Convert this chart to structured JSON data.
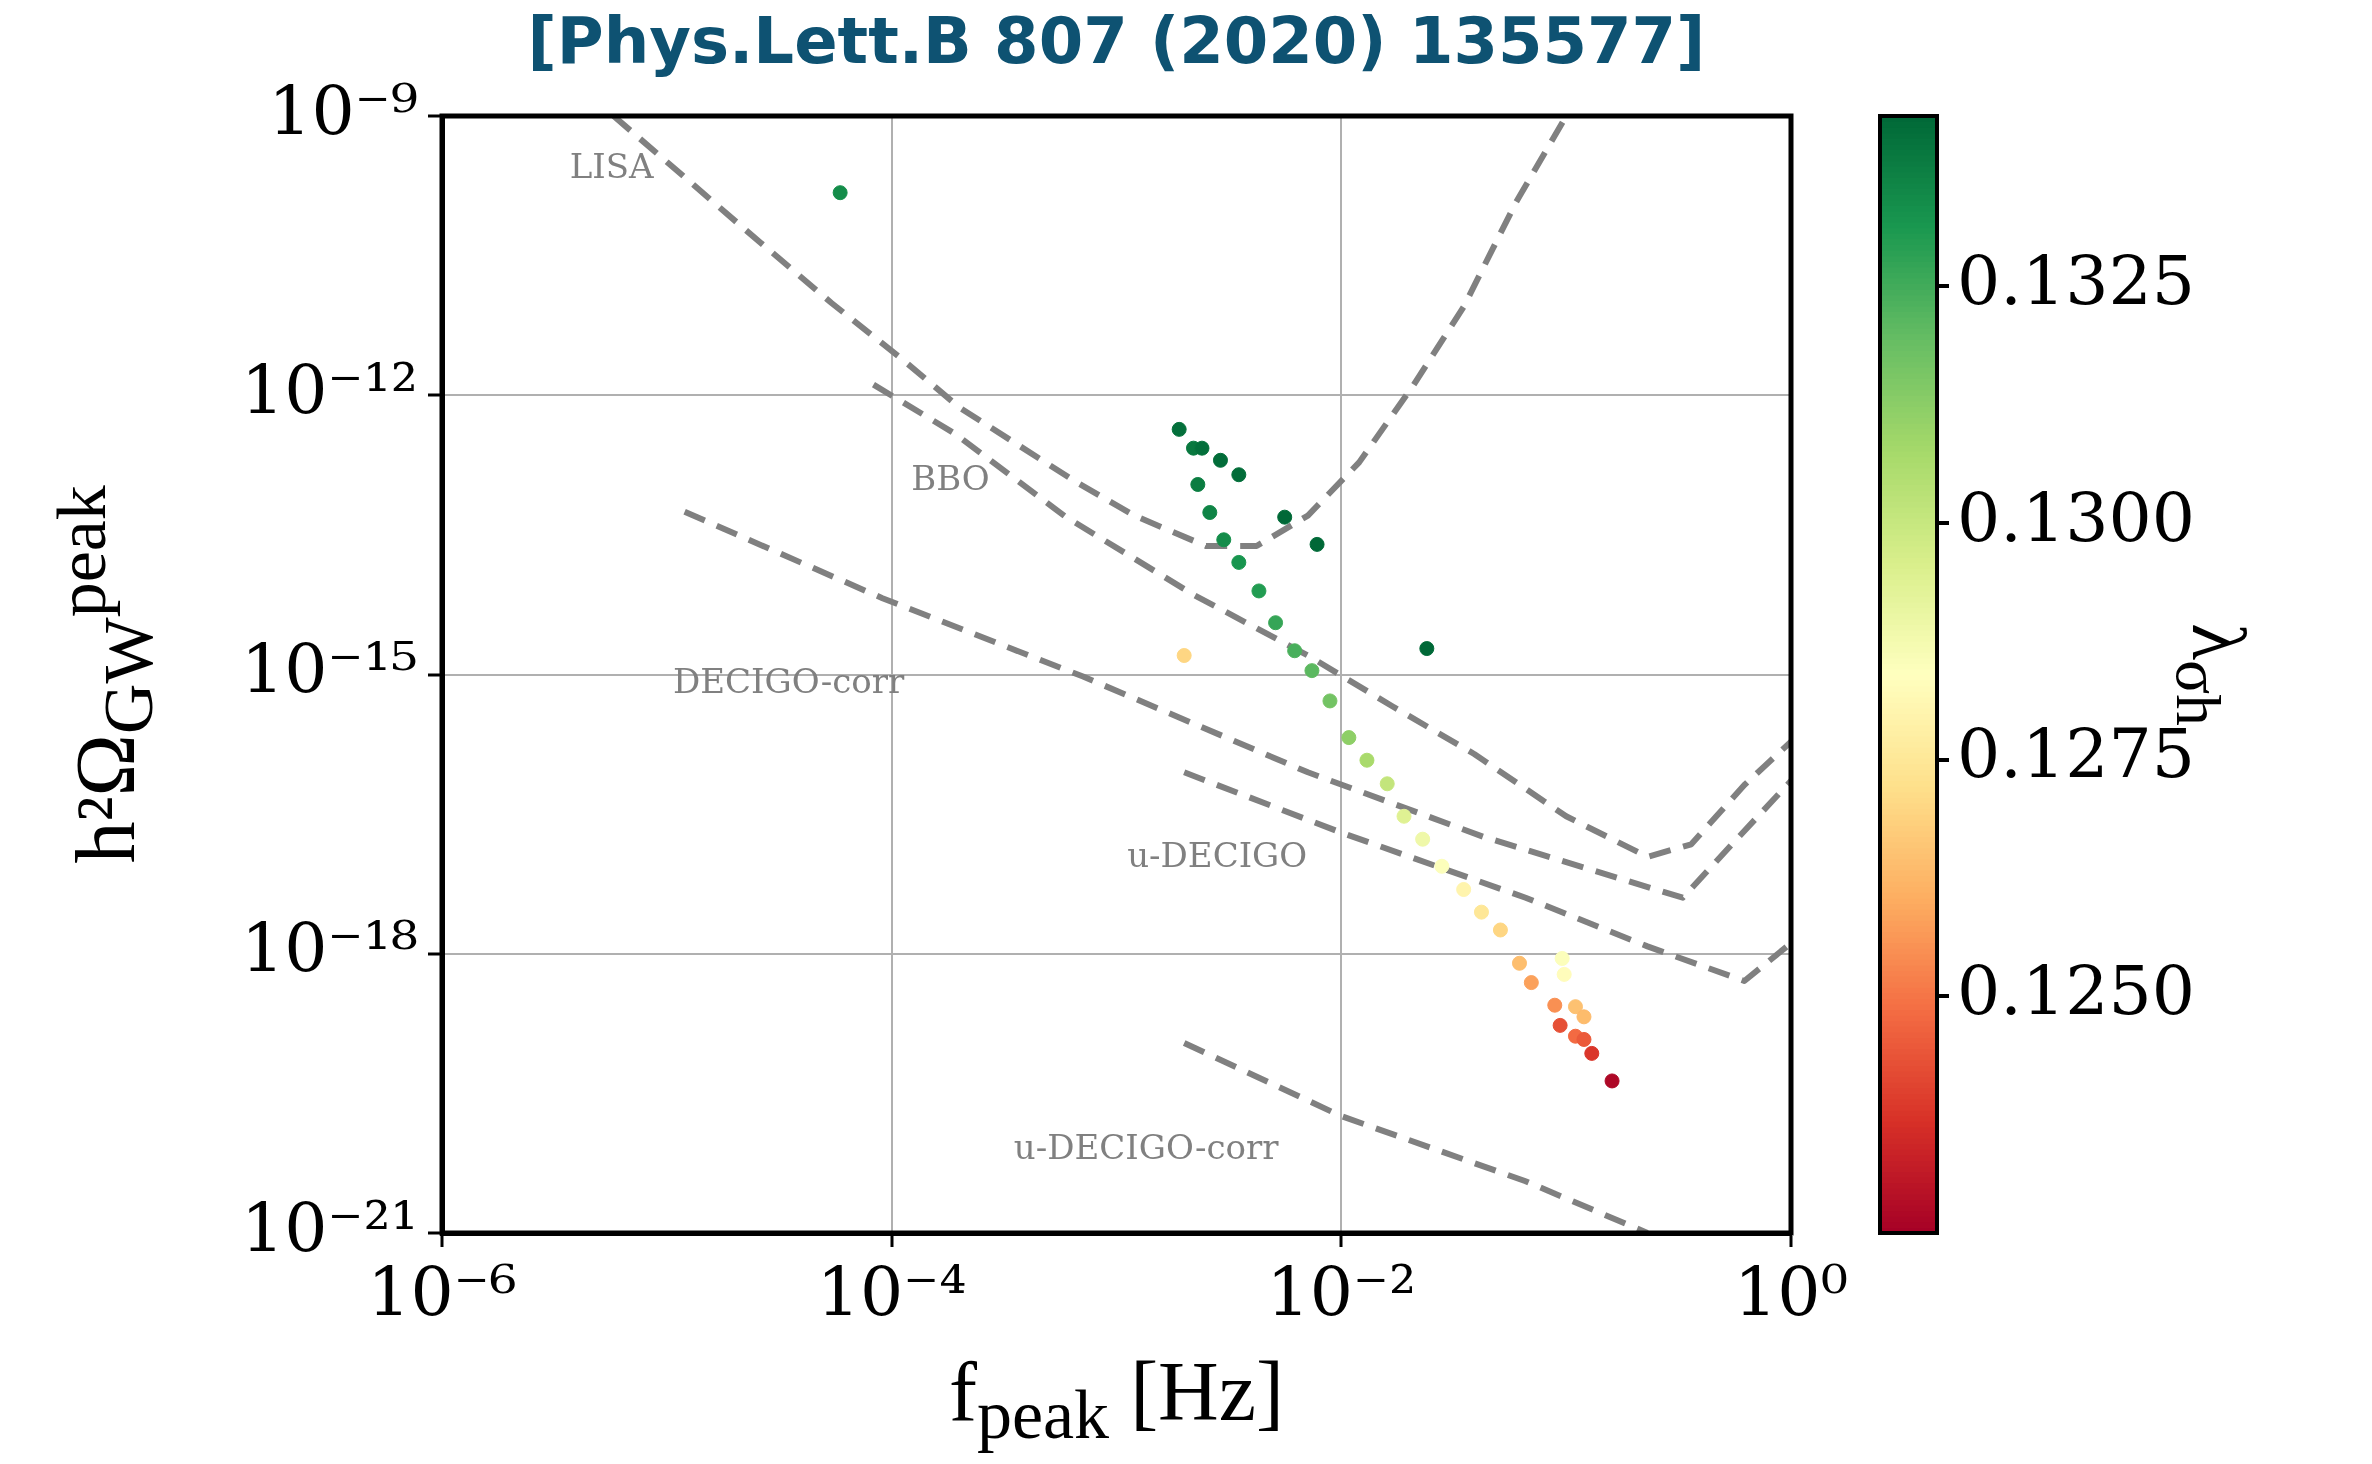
{
  "chart_data": {
    "type": "scatter",
    "title": "[Phys.Lett.B 807 (2020) 135577]",
    "xlabel": "f$_{peak}$ [Hz]",
    "ylabel": "h²Ω$_{GW}$$^{peak}$",
    "clabel": "λ$_{σh}$",
    "log": "xy",
    "grid": true,
    "xlim": [
      1e-06,
      1
    ],
    "ylim": [
      1e-21,
      1e-09
    ],
    "xticks": [
      {
        "value": 1e-06,
        "label": "10⁻⁶"
      },
      {
        "value": 0.0001,
        "label": "10⁻⁴"
      },
      {
        "value": 0.01,
        "label": "10⁻²"
      },
      {
        "value": 1,
        "label": "10⁰"
      }
    ],
    "yticks": [
      {
        "value": 1e-21,
        "label": "10⁻²¹"
      },
      {
        "value": 1e-18,
        "label": "10⁻¹⁸"
      },
      {
        "value": 1e-15,
        "label": "10⁻¹⁵"
      },
      {
        "value": 1e-12,
        "label": "10⁻¹²"
      },
      {
        "value": 1e-09,
        "label": "10⁻⁹"
      }
    ],
    "clim": [
      0.1225,
      0.1343
    ],
    "cticks": [
      {
        "value": 0.125,
        "label": "0.1250"
      },
      {
        "value": 0.1275,
        "label": "0.1275"
      },
      {
        "value": 0.13,
        "label": "0.1300"
      },
      {
        "value": 0.1325,
        "label": "0.1325"
      }
    ],
    "series": [
      {
        "type": "line",
        "name": "LISA",
        "color": "#808080",
        "line_style": "dashed",
        "marker": "none",
        "x": [
          5.8e-06,
          1.2e-05,
          2.2e-05,
          5.4e-05,
          0.00011,
          0.0002,
          0.00065,
          0.0012,
          0.0025,
          0.0042,
          0.0071,
          0.012,
          0.021,
          0.035,
          0.06,
          0.1
        ],
        "values": [
          1e-09,
          2.2e-10,
          6.2e-11,
          9.8e-12,
          2.5e-12,
          7.4e-13,
          1.2e-13,
          5.1e-14,
          2.4e-14,
          2.4e-14,
          5.1e-14,
          1.9e-13,
          1.3e-12,
          8.9e-12,
          1.2e-10,
          1e-09
        ]
      },
      {
        "type": "line",
        "name": "BBO",
        "color": "#808080",
        "line_style": "dashed",
        "marker": "none",
        "x": [
          8.3e-05,
          0.00019,
          0.00059,
          0.0022,
          0.0071,
          0.017,
          0.039,
          0.1,
          0.23,
          0.36,
          0.62,
          1
        ],
        "values": [
          1.3e-12,
          3.9e-13,
          5e-14,
          7.2e-15,
          1.6e-15,
          4.5e-16,
          1.4e-16,
          3e-17,
          1.1e-17,
          1.5e-17,
          6.5e-17,
          1.9e-16
        ]
      },
      {
        "type": "line",
        "name": "DECIGO-corr",
        "color": "#808080",
        "line_style": "dashed",
        "marker": "none",
        "x": [
          1.2e-05,
          9.1e-05,
          0.00071,
          0.0071,
          0.043,
          0.33,
          0.56,
          1
        ],
        "values": [
          5.6e-14,
          6.6e-15,
          9.5e-16,
          8.9e-17,
          1.8e-17,
          4e-18,
          1.6e-17,
          7.2e-17
        ]
      },
      {
        "type": "line",
        "name": "u-DECIGO",
        "color": "#808080",
        "line_style": "dashed",
        "marker": "none",
        "x": [
          0.002,
          0.01,
          0.066,
          0.23,
          0.62,
          1
        ],
        "values": [
          8.9e-17,
          2e-17,
          4e-18,
          1.2e-18,
          5.1e-19,
          1.3e-18
        ]
      },
      {
        "type": "line",
        "name": "u-DECIGO-corr",
        "color": "#808080",
        "line_style": "dashed",
        "marker": "none",
        "x": [
          0.002,
          0.01,
          0.066,
          0.23
        ],
        "values": [
          1.1e-19,
          1.8e-20,
          3.6e-21,
          1e-21
        ]
      },
      {
        "type": "scatter",
        "marker": "circle",
        "x": [
          0.0019,
          0.0022,
          0.0023,
          0.0026,
          0.003,
          0.0035,
          0.0043,
          0.0051,
          0.0062,
          0.0074,
          0.0089,
          0.0108,
          0.013,
          0.016,
          0.019,
          0.023,
          0.028,
          0.035,
          0.042,
          0.051,
          0.062,
          0.07,
          0.0024,
          0.0029,
          0.0035,
          0.0056,
          0.0078,
          0.024,
          0.002,
          0.096,
          0.098,
          0.089,
          0.11,
          0.12,
          0.094,
          0.11,
          0.12,
          0.13,
          0.16,
          5.9e-05
        ],
        "values": [
          4.3e-13,
          2.7e-13,
          1.1e-13,
          5.5e-14,
          2.8e-14,
          1.6e-14,
          7.9e-15,
          3.6e-15,
          1.8e-15,
          1.1e-15,
          5.2e-16,
          2.1e-16,
          1.2e-16,
          6.7e-17,
          3e-17,
          1.7e-17,
          8.7e-18,
          4.9e-18,
          2.8e-18,
          1.8e-18,
          7.9e-19,
          4.9e-19,
          2.7e-13,
          2e-13,
          1.4e-13,
          4.9e-14,
          2.5e-14,
          1.9e-15,
          1.6e-15,
          8.9e-19,
          6e-19,
          2.8e-19,
          2.7e-19,
          2.1e-19,
          1.7e-19,
          1.3e-19,
          1.2e-19,
          8.5e-20,
          4.3e-20,
          1.5e-10
        ],
        "colors": [
          "#046f3b",
          "#09783f",
          "#0b7c41",
          "#0f8446",
          "#148c4a",
          "#18954f",
          "#229c52",
          "#35a557",
          "#48af5c",
          "#5bb860",
          "#73c364",
          "#8ecf67",
          "#a9da6c",
          "#c3e57c",
          "#dff193",
          "#eff8a9",
          "#fcfebb",
          "#fff4ad",
          "#fee797",
          "#fed683",
          "#fdbe6e",
          "#fba15b",
          "#046f3b",
          "#026c39",
          "#026c39",
          "#006837",
          "#006837",
          "#006837",
          "#fed683",
          "#fcfebb",
          "#fffcbb",
          "#f99053",
          "#fdc171",
          "#fdbc6c",
          "#e65036",
          "#f36a42",
          "#eb5a3a",
          "#da362a",
          "#ae0827",
          "#148c4a"
        ],
        "cvalues": [
          0.134,
          0.1338,
          0.1337,
          0.1335,
          0.1333,
          0.1331,
          0.1329,
          0.1326,
          0.1323,
          0.132,
          0.1316,
          0.1312,
          0.1306,
          0.13,
          0.1293,
          0.1289,
          0.1285,
          0.128,
          0.1275,
          0.127,
          0.1264,
          0.1258,
          0.134,
          0.1341,
          0.1341,
          0.1342,
          0.1342,
          0.1342,
          0.127,
          0.1285,
          0.1283,
          0.1255,
          0.1265,
          0.1263,
          0.1243,
          0.1248,
          0.1245,
          0.1238,
          0.1227,
          0.1333
        ]
      }
    ]
  }
}
